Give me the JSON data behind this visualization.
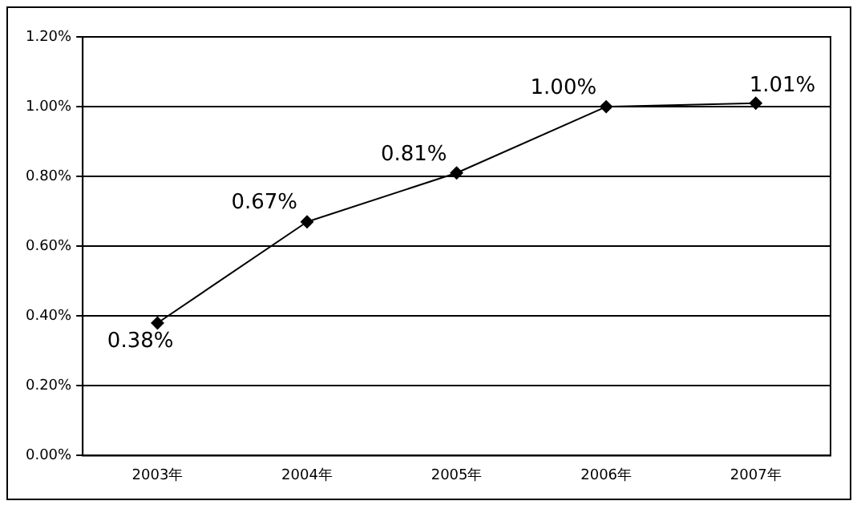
{
  "chart_data": {
    "type": "line",
    "categories": [
      "2003年",
      "2004年",
      "2005年",
      "2006年",
      "2007年"
    ],
    "series": [
      {
        "color": "#000000",
        "values": [
          0.38,
          0.67,
          0.81,
          1.0,
          1.01
        ],
        "value_labels": [
          "0.38%",
          "0.67%",
          "0.81%",
          "1.00%",
          "1.01%"
        ]
      }
    ],
    "ylim": [
      0,
      1.2
    ],
    "yticks": [
      {
        "value": 0,
        "label": "0.00%"
      },
      {
        "value": 0.2,
        "label": "0.20%"
      },
      {
        "value": 0.4,
        "label": "0.40%"
      },
      {
        "value": 0.6,
        "label": "0.60%"
      },
      {
        "value": 0.8,
        "label": "0.80%"
      },
      {
        "value": 1.0,
        "label": "1.00%"
      },
      {
        "value": 1.2,
        "label": "1.20%"
      }
    ],
    "grid": "y",
    "legend": false,
    "marker": "diamond",
    "line_style": "solid"
  }
}
